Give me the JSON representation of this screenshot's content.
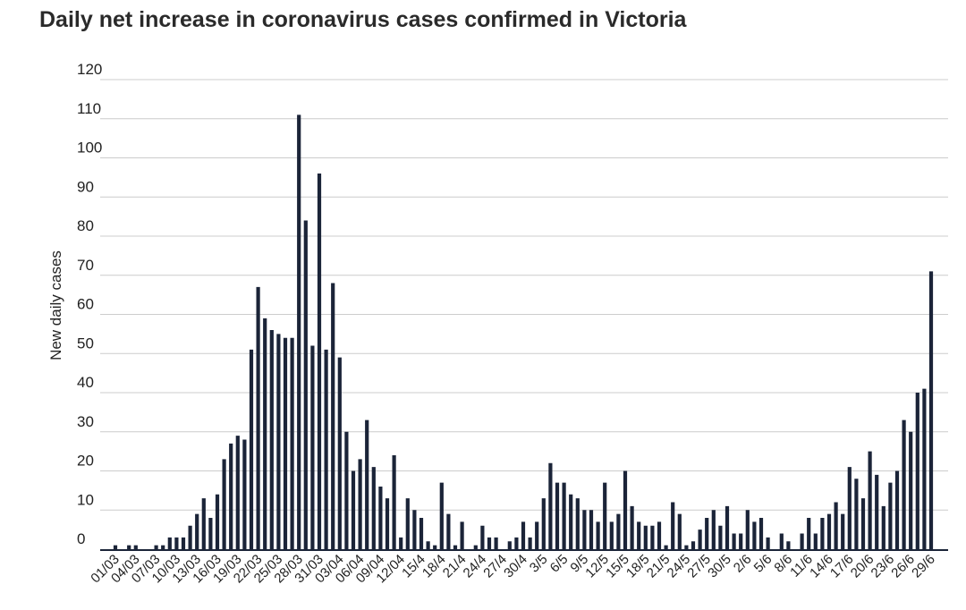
{
  "chart_data": {
    "type": "bar",
    "title": "Daily net increase in coronavirus cases confirmed in Victoria",
    "xlabel": "",
    "ylabel": "New daily cases",
    "ylim": [
      0,
      120
    ],
    "yticks": [
      0,
      10,
      20,
      30,
      40,
      50,
      60,
      70,
      80,
      90,
      100,
      110,
      120
    ],
    "grid": true,
    "bar_color": "#1b2438",
    "categories": [
      "01/03",
      "02/03",
      "03/03",
      "04/03",
      "05/03",
      "06/03",
      "07/03",
      "08/03",
      "09/03",
      "10/03",
      "11/03",
      "12/03",
      "13/03",
      "14/03",
      "15/03",
      "16/03",
      "17/03",
      "18/03",
      "19/03",
      "20/03",
      "21/03",
      "22/03",
      "23/03",
      "24/03",
      "25/03",
      "26/03",
      "27/03",
      "28/03",
      "29/03",
      "30/03",
      "31/03",
      "01/04",
      "02/04",
      "03/04",
      "04/04",
      "05/04",
      "06/04",
      "07/04",
      "08/04",
      "09/04",
      "10/04",
      "11/04",
      "12/04",
      "13/4",
      "14/4",
      "15/4",
      "16/4",
      "17/4",
      "18/4",
      "19/4",
      "20/4",
      "21/4",
      "22/4",
      "23/4",
      "24/4",
      "25/4",
      "26/4",
      "27/4",
      "28/4",
      "29/4",
      "30/4",
      "1/5",
      "2/5",
      "3/5",
      "4/5",
      "5/5",
      "6/5",
      "7/5",
      "8/5",
      "9/5",
      "10/5",
      "11/5",
      "12/5",
      "13/5",
      "14/5",
      "15/5",
      "16/5",
      "17/5",
      "18/5",
      "19/5",
      "20/5",
      "21/5",
      "22/5",
      "23/5",
      "24/5",
      "25/5",
      "26/5",
      "27/5",
      "28/5",
      "29/5",
      "30/5",
      "31/5",
      "1/6",
      "2/6",
      "3/6",
      "4/6",
      "5/6",
      "6/6",
      "7/6",
      "8/6",
      "9/6",
      "10/6",
      "11/6",
      "12/6",
      "13/6",
      "14/6",
      "15/6",
      "16/6",
      "17/6",
      "18/6",
      "19/6",
      "20/6",
      "21/6",
      "22/6",
      "23/6",
      "24/6",
      "25/6",
      "26/6",
      "27/6",
      "28/6",
      "29/6"
    ],
    "values": [
      1,
      0,
      1,
      1,
      0,
      0,
      1,
      1,
      3,
      3,
      3,
      6,
      9,
      13,
      8,
      14,
      23,
      27,
      29,
      28,
      51,
      67,
      59,
      56,
      55,
      54,
      54,
      111,
      84,
      52,
      96,
      51,
      68,
      49,
      30,
      20,
      23,
      33,
      21,
      16,
      13,
      24,
      3,
      13,
      10,
      8,
      2,
      1,
      17,
      9,
      1,
      7,
      0,
      1,
      6,
      3,
      3,
      0,
      2,
      3,
      7,
      3,
      7,
      13,
      22,
      17,
      17,
      14,
      13,
      10,
      10,
      7,
      17,
      7,
      9,
      20,
      11,
      7,
      6,
      6,
      7,
      1,
      12,
      9,
      1,
      2,
      5,
      8,
      10,
      6,
      11,
      4,
      4,
      10,
      7,
      8,
      3,
      0,
      4,
      2,
      0,
      4,
      8,
      4,
      8,
      9,
      12,
      9,
      21,
      18,
      13,
      25,
      19,
      11,
      17,
      20,
      33,
      30,
      40,
      41,
      71
    ],
    "tick_labels": [
      "01/03",
      "04/03",
      "07/03",
      "10/03",
      "13/03",
      "16/03",
      "19/03",
      "22/03",
      "25/03",
      "28/03",
      "31/03",
      "03/04",
      "06/04",
      "09/04",
      "12/04",
      "15/4",
      "18/4",
      "21/4",
      "24/4",
      "27/4",
      "30/4",
      "3/5",
      "6/5",
      "9/5",
      "12/5",
      "15/5",
      "18/5",
      "21/5",
      "24/5",
      "27/5",
      "30/5",
      "2/6",
      "5/6",
      "8/6",
      "11/6",
      "14/6",
      "17/6",
      "20/6",
      "23/6",
      "26/6",
      "29/6"
    ]
  }
}
